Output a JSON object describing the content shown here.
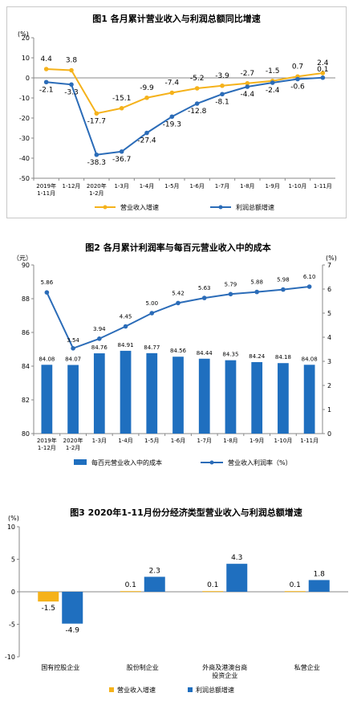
{
  "chart_data": [
    {
      "type": "line",
      "title": "图1  各月累计营业收入与利润总额同比增速",
      "unit_label": "(%)",
      "categories": [
        "2019年\n1-11月",
        "1-12月",
        "2020年\n1-2月",
        "1-3月",
        "1-4月",
        "1-5月",
        "1-6月",
        "1-7月",
        "1-8月",
        "1-9月",
        "1-10月",
        "1-11月"
      ],
      "ylim": [
        -50,
        20
      ],
      "yticks": [
        20,
        10,
        0,
        -10,
        -20,
        -30,
        -40,
        -50
      ],
      "series": [
        {
          "name": "营业收入增速",
          "color": "#f5b21b",
          "values": [
            4.4,
            3.8,
            -17.7,
            -15.1,
            -9.9,
            -7.4,
            -5.2,
            -3.9,
            -2.7,
            -1.5,
            0.7,
            2.4
          ]
        },
        {
          "name": "利润总额增速",
          "color": "#2b6cb8",
          "values": [
            -2.1,
            -3.3,
            -38.3,
            -36.7,
            -27.4,
            -19.3,
            -12.8,
            -8.1,
            -4.4,
            -2.4,
            -0.6,
            0.1
          ]
        }
      ]
    },
    {
      "type": "bar+line",
      "title": "图2  各月累计利润率与每百元营业收入中的成本",
      "left_unit": "（元）",
      "right_unit": "(%)",
      "categories": [
        "2019年\n1-12月",
        "2020年\n1-2月",
        "1-3月",
        "1-4月",
        "1-5月",
        "1-6月",
        "1-7月",
        "1-8月",
        "1-9月",
        "1-10月",
        "1-11月"
      ],
      "ylim_left": [
        80,
        90
      ],
      "yticks_left": [
        90,
        88,
        86,
        84,
        82,
        80
      ],
      "ylim_right": [
        0,
        7
      ],
      "yticks_right": [
        7,
        6,
        5,
        4,
        3,
        2,
        1,
        0
      ],
      "series": [
        {
          "name": "每百元营业收入中的成本",
          "type": "bar",
          "color": "#1f6fbf",
          "values": [
            84.08,
            84.07,
            84.76,
            84.91,
            84.77,
            84.56,
            84.44,
            84.35,
            84.24,
            84.18,
            84.08
          ]
        },
        {
          "name": "营业收入利润率（%）",
          "type": "line",
          "color": "#2b6cb8",
          "values": [
            5.86,
            3.54,
            3.94,
            4.45,
            5.0,
            5.42,
            5.63,
            5.79,
            5.88,
            5.98,
            6.1
          ]
        }
      ],
      "value_labels_line": [
        "5.86",
        "3.54",
        "3.94",
        "4.45",
        "5.00",
        "5.42",
        "5.63",
        "5.79",
        "5.88",
        "5.98",
        "6.10"
      ],
      "value_labels_bar": [
        "84.08",
        "84.07",
        "84.76",
        "84.91",
        "84.77",
        "84.56",
        "84.44",
        "84.35",
        "84.24",
        "84.18",
        "84.08"
      ]
    },
    {
      "type": "bar",
      "title": "图3  2020年1-11月份分经济类型营业收入与利润总额增速",
      "unit_label": "(%)",
      "categories": [
        "国有控股企业",
        "股份制企业",
        "外商及港澳台商\n投资企业",
        "私营企业"
      ],
      "ylim": [
        -10,
        10
      ],
      "yticks": [
        10,
        5,
        0,
        -5,
        -10
      ],
      "series": [
        {
          "name": "营业收入增速",
          "color": "#f5b21b",
          "values": [
            -1.5,
            0.1,
            0.1,
            0.1
          ]
        },
        {
          "name": "利润总额增速",
          "color": "#1f6fbf",
          "values": [
            -4.9,
            2.3,
            4.3,
            1.8
          ]
        }
      ]
    }
  ]
}
